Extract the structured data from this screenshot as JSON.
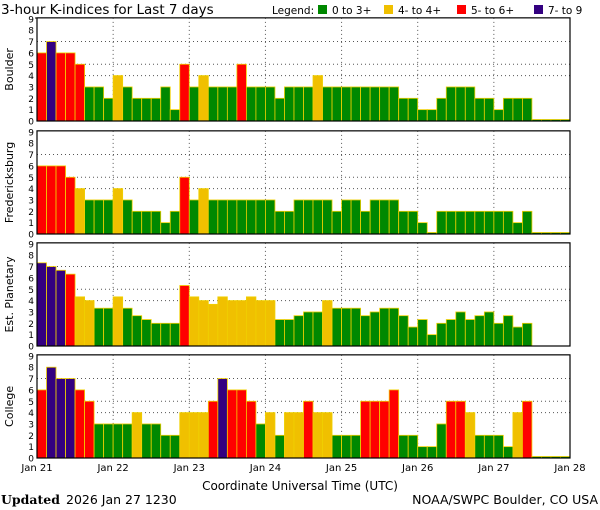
{
  "chart_data": {
    "type": "bar",
    "title": "3-hour K-indices for Last 7 days",
    "legend": {
      "label": "Legend:",
      "entries": [
        {
          "label": "0 to 3+",
          "color": "#008800"
        },
        {
          "label": "4- to 4+",
          "color": "#f0c000"
        },
        {
          "label": "5- to 6+",
          "color": "#ff0000"
        },
        {
          "label": "7- to 9",
          "color": "#330080"
        }
      ],
      "placement": "top-right"
    },
    "xlabel": "Coordinate Universal Time (UTC)",
    "x_ticks": [
      "Jan 21",
      "Jan 22",
      "Jan 23",
      "Jan 24",
      "Jan 25",
      "Jan 26",
      "Jan 27",
      "Jan 28"
    ],
    "y_ticks": [
      "0",
      "1",
      "2",
      "3",
      "4",
      "5",
      "6",
      "7",
      "8",
      "9"
    ],
    "ylim": [
      0,
      9
    ],
    "gridlines_y": [
      4,
      5,
      7
    ],
    "bars_per_day": 8,
    "panels": [
      {
        "name": "Boulder",
        "values": [
          6,
          7,
          6,
          6,
          5,
          3,
          3,
          2,
          4,
          3,
          2,
          2,
          2,
          3,
          1,
          5,
          3,
          4,
          3,
          3,
          3,
          5,
          3,
          3,
          3,
          2,
          3,
          3,
          3,
          4,
          3,
          3,
          3,
          3,
          3,
          3,
          3,
          3,
          2,
          2,
          1,
          1,
          2,
          3,
          3,
          3,
          2,
          2,
          1,
          2,
          2,
          2,
          0,
          0,
          0,
          0
        ]
      },
      {
        "name": "Fredericksburg",
        "values": [
          6,
          6,
          6,
          5,
          4,
          3,
          3,
          3,
          4,
          3,
          2,
          2,
          2,
          1,
          2,
          5,
          3,
          4,
          3,
          3,
          3,
          3,
          3,
          3,
          3,
          2,
          2,
          3,
          3,
          3,
          3,
          2,
          3,
          3,
          2,
          3,
          3,
          3,
          2,
          2,
          1,
          0,
          2,
          2,
          2,
          2,
          2,
          2,
          2,
          2,
          1,
          2,
          0,
          0,
          0,
          0
        ]
      },
      {
        "name": "Est. Planetary",
        "values": [
          7.33,
          7,
          6.67,
          6.33,
          4.33,
          4,
          3.33,
          3.33,
          4.33,
          3.33,
          2.67,
          2.33,
          2,
          2,
          2,
          5.33,
          4.33,
          4,
          3.67,
          4.33,
          4,
          4,
          4.33,
          4,
          4,
          2.33,
          2.33,
          2.67,
          3,
          3,
          4,
          3.33,
          3.33,
          3.33,
          2.67,
          3,
          3.33,
          3.33,
          2.67,
          1.67,
          2.33,
          1,
          2,
          2.33,
          3,
          2.33,
          2.67,
          3,
          2,
          2.67,
          1.67,
          2,
          null,
          null,
          null,
          null
        ]
      },
      {
        "name": "College",
        "values": [
          6,
          8,
          7,
          7,
          6,
          5,
          3,
          3,
          3,
          3,
          4,
          3,
          3,
          2,
          2,
          4,
          4,
          4,
          5,
          7,
          6,
          6,
          5,
          3,
          4,
          2,
          4,
          4,
          5,
          4,
          4,
          2,
          2,
          2,
          5,
          5,
          5,
          6,
          2,
          2,
          1,
          1,
          3,
          5,
          5,
          4,
          2,
          2,
          2,
          1,
          4,
          5,
          0,
          0,
          0,
          0
        ]
      }
    ]
  },
  "footer": {
    "updated_label": "Updated",
    "updated_value": "2026 Jan 27 1230",
    "source": "NOAA/SWPC Boulder, CO USA"
  }
}
